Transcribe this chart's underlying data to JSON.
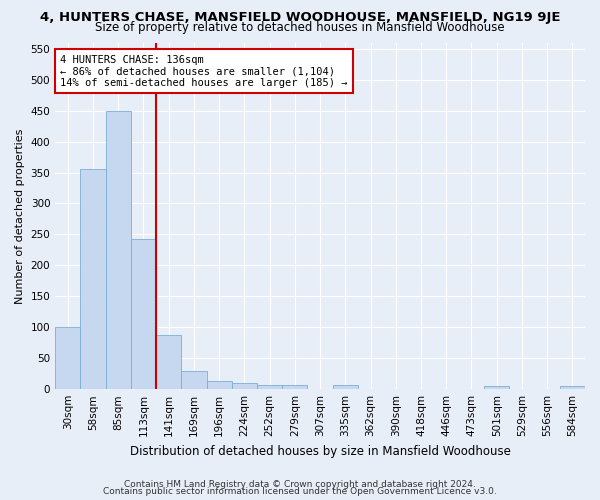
{
  "title1": "4, HUNTERS CHASE, MANSFIELD WOODHOUSE, MANSFIELD, NG19 9JE",
  "title2": "Size of property relative to detached houses in Mansfield Woodhouse",
  "xlabel": "Distribution of detached houses by size in Mansfield Woodhouse",
  "ylabel": "Number of detached properties",
  "bin_labels": [
    "30sqm",
    "58sqm",
    "85sqm",
    "113sqm",
    "141sqm",
    "169sqm",
    "196sqm",
    "224sqm",
    "252sqm",
    "279sqm",
    "307sqm",
    "335sqm",
    "362sqm",
    "390sqm",
    "418sqm",
    "446sqm",
    "473sqm",
    "501sqm",
    "529sqm",
    "556sqm",
    "584sqm"
  ],
  "bar_values": [
    100,
    356,
    449,
    243,
    88,
    30,
    14,
    10,
    6,
    6,
    0,
    6,
    0,
    0,
    0,
    0,
    0,
    5,
    0,
    0,
    5
  ],
  "bar_color": "#c5d8f0",
  "bar_edge_color": "#7bafd4",
  "vline_color": "#cc0000",
  "annotation_title": "4 HUNTERS CHASE: 136sqm",
  "annotation_line1": "← 86% of detached houses are smaller (1,104)",
  "annotation_line2": "14% of semi-detached houses are larger (185) →",
  "annotation_box_color": "#ffffff",
  "annotation_box_edge_color": "#cc0000",
  "ylim": [
    0,
    560
  ],
  "yticks": [
    0,
    50,
    100,
    150,
    200,
    250,
    300,
    350,
    400,
    450,
    500,
    550
  ],
  "footer1": "Contains HM Land Registry data © Crown copyright and database right 2024.",
  "footer2": "Contains public sector information licensed under the Open Government Licence v3.0.",
  "bg_color": "#e8eef8",
  "grid_color": "#ffffff",
  "title1_fontsize": 9.5,
  "title2_fontsize": 8.5,
  "xlabel_fontsize": 8.5,
  "ylabel_fontsize": 8,
  "tick_fontsize": 7.5,
  "footer_fontsize": 6.5,
  "annotation_fontsize": 7.5
}
